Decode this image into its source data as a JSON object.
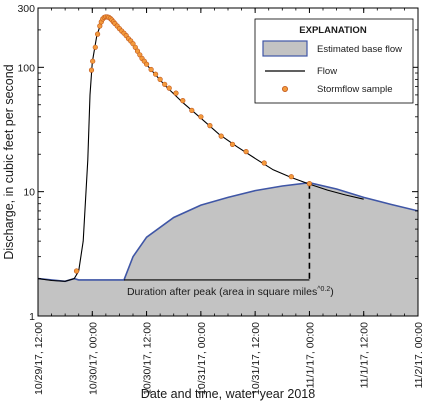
{
  "chart_data": {
    "type": "line",
    "xlabel": "Date and time, water year 2018",
    "ylabel": "Discharge, in cubic feet per second",
    "yscale": "log",
    "ylim": [
      1,
      300
    ],
    "xlim": [
      "10/29/17, 12:00",
      "11/2/17, 00:00"
    ],
    "x_ticks": [
      "10/29/17, 12:00",
      "10/30/17, 00:00",
      "10/30/17, 12:00",
      "10/31/17, 00:00",
      "10/31/17, 12:00",
      "11/1/17, 00:00",
      "11/1/17, 12:00",
      "11/2/17, 00:00"
    ],
    "y_ticks": [
      {
        "value": 1,
        "label": "1"
      },
      {
        "value": 10,
        "label": "10"
      },
      {
        "value": 100,
        "label": "100"
      },
      {
        "value": 300,
        "label": "300"
      }
    ],
    "legend": {
      "title": "EXPLANATION",
      "placement": "top-right",
      "entries": {
        "base_flow": "Estimated base flow",
        "flow": "Flow",
        "samples": "Stormflow sample"
      }
    },
    "annotation": {
      "text_main": "Duration after peak (area in square miles",
      "text_sup": "^0.2",
      "text_end": ")"
    },
    "colors": {
      "base_fill": "#c3c3c3",
      "base_line": "#3f56a6",
      "flow_line": "#000000",
      "sample_fill": "#f39a3c",
      "sample_stroke": "#c0561c",
      "dashed": "#000000"
    },
    "flow_series": [
      {
        "x": "10/29/17, 12:00",
        "y": 2.0
      },
      {
        "x": "10/29/17, 15:00",
        "y": 1.93
      },
      {
        "x": "10/29/17, 18:00",
        "y": 1.9
      },
      {
        "x": "10/29/17, 20:00",
        "y": 2.0
      },
      {
        "x": "10/29/17, 21:00",
        "y": 2.3
      },
      {
        "x": "10/29/17, 22:00",
        "y": 4.0
      },
      {
        "x": "10/29/17, 23:00",
        "y": 18
      },
      {
        "x": "10/29/17, 23:30",
        "y": 60
      },
      {
        "x": "10/30/17, 00:00",
        "y": 110
      },
      {
        "x": "10/30/17, 01:00",
        "y": 180
      },
      {
        "x": "10/30/17, 02:00",
        "y": 230
      },
      {
        "x": "10/30/17, 03:00",
        "y": 255
      },
      {
        "x": "10/30/17, 04:00",
        "y": 252
      },
      {
        "x": "10/30/17, 05:00",
        "y": 230
      },
      {
        "x": "10/30/17, 07:00",
        "y": 190
      },
      {
        "x": "10/30/17, 09:00",
        "y": 150
      },
      {
        "x": "10/30/17, 12:00",
        "y": 105
      },
      {
        "x": "10/30/17, 16:00",
        "y": 72
      },
      {
        "x": "10/30/17, 20:00",
        "y": 52
      },
      {
        "x": "10/31/17, 00:00",
        "y": 39
      },
      {
        "x": "10/31/17, 04:00",
        "y": 29
      },
      {
        "x": "10/31/17, 08:00",
        "y": 23
      },
      {
        "x": "10/31/17, 12:00",
        "y": 18.5
      },
      {
        "x": "10/31/17, 16:00",
        "y": 15
      },
      {
        "x": "10/31/17, 20:00",
        "y": 13
      },
      {
        "x": "11/1/17, 00:00",
        "y": 11.5
      },
      {
        "x": "11/1/17, 04:00",
        "y": 10.3
      },
      {
        "x": "11/1/17, 08:00",
        "y": 9.4
      },
      {
        "x": "11/1/17, 12:00",
        "y": 8.7
      }
    ],
    "base_flow_series": [
      {
        "x": "10/29/17, 12:00",
        "y": 2.0
      },
      {
        "x": "10/29/17, 15:00",
        "y": 1.95
      },
      {
        "x": "10/29/17, 18:00",
        "y": 1.9
      },
      {
        "x": "10/29/17, 20:00",
        "y": 2.0
      },
      {
        "x": "10/29/17, 21:00",
        "y": 1.95
      },
      {
        "x": "10/30/17, 07:00",
        "y": 1.95
      },
      {
        "x": "10/30/17, 09:00",
        "y": 3.0
      },
      {
        "x": "10/30/17, 12:00",
        "y": 4.3
      },
      {
        "x": "10/30/17, 18:00",
        "y": 6.2
      },
      {
        "x": "10/31/17, 00:00",
        "y": 7.8
      },
      {
        "x": "10/31/17, 06:00",
        "y": 9.0
      },
      {
        "x": "10/31/17, 12:00",
        "y": 10.2
      },
      {
        "x": "10/31/17, 18:00",
        "y": 11.1
      },
      {
        "x": "11/1/17, 00:00",
        "y": 11.8
      },
      {
        "x": "11/1/17, 06:00",
        "y": 10.5
      },
      {
        "x": "11/1/17, 12:00",
        "y": 9.0
      },
      {
        "x": "11/1/17, 18:00",
        "y": 7.9
      },
      {
        "x": "11/2/17, 00:00",
        "y": 7.0
      }
    ],
    "stormflow_samples": [
      {
        "x": "10/29/17, 20:30",
        "y": 2.3
      },
      {
        "x": "10/29/17, 23:50",
        "y": 95
      },
      {
        "x": "10/30/17, 00:05",
        "y": 112
      },
      {
        "x": "10/30/17, 00:40",
        "y": 145
      },
      {
        "x": "10/30/17, 01:10",
        "y": 185
      },
      {
        "x": "10/30/17, 01:40",
        "y": 215
      },
      {
        "x": "10/30/17, 02:00",
        "y": 232
      },
      {
        "x": "10/30/17, 02:20",
        "y": 245
      },
      {
        "x": "10/30/17, 02:40",
        "y": 252
      },
      {
        "x": "10/30/17, 03:00",
        "y": 255
      },
      {
        "x": "10/30/17, 03:20",
        "y": 254
      },
      {
        "x": "10/30/17, 03:40",
        "y": 252
      },
      {
        "x": "10/30/17, 04:00",
        "y": 247
      },
      {
        "x": "10/30/17, 04:20",
        "y": 240
      },
      {
        "x": "10/30/17, 04:40",
        "y": 232
      },
      {
        "x": "10/30/17, 05:00",
        "y": 225
      },
      {
        "x": "10/30/17, 05:30",
        "y": 215
      },
      {
        "x": "10/30/17, 06:00",
        "y": 205
      },
      {
        "x": "10/30/17, 06:30",
        "y": 196
      },
      {
        "x": "10/30/17, 07:00",
        "y": 188
      },
      {
        "x": "10/30/17, 07:30",
        "y": 180
      },
      {
        "x": "10/30/17, 08:00",
        "y": 170
      },
      {
        "x": "10/30/17, 08:30",
        "y": 163
      },
      {
        "x": "10/30/17, 09:00",
        "y": 155
      },
      {
        "x": "10/30/17, 09:30",
        "y": 145
      },
      {
        "x": "10/30/17, 10:00",
        "y": 135
      },
      {
        "x": "10/30/17, 10:30",
        "y": 126
      },
      {
        "x": "10/30/17, 11:00",
        "y": 118
      },
      {
        "x": "10/30/17, 11:30",
        "y": 112
      },
      {
        "x": "10/30/17, 12:00",
        "y": 106
      },
      {
        "x": "10/30/17, 13:00",
        "y": 96
      },
      {
        "x": "10/30/17, 14:00",
        "y": 88
      },
      {
        "x": "10/30/17, 15:00",
        "y": 80
      },
      {
        "x": "10/30/17, 16:00",
        "y": 73
      },
      {
        "x": "10/30/17, 17:00",
        "y": 68
      },
      {
        "x": "10/30/17, 18:30",
        "y": 62
      },
      {
        "x": "10/30/17, 20:00",
        "y": 54
      },
      {
        "x": "10/30/17, 22:00",
        "y": 45
      },
      {
        "x": "10/31/17, 00:00",
        "y": 40
      },
      {
        "x": "10/31/17, 02:00",
        "y": 34
      },
      {
        "x": "10/31/17, 04:30",
        "y": 28
      },
      {
        "x": "10/31/17, 07:00",
        "y": 24
      },
      {
        "x": "10/31/17, 10:00",
        "y": 21
      },
      {
        "x": "10/31/17, 14:00",
        "y": 17
      },
      {
        "x": "10/31/17, 20:00",
        "y": 13.2
      },
      {
        "x": "11/1/17, 00:00",
        "y": 11.6
      }
    ]
  }
}
